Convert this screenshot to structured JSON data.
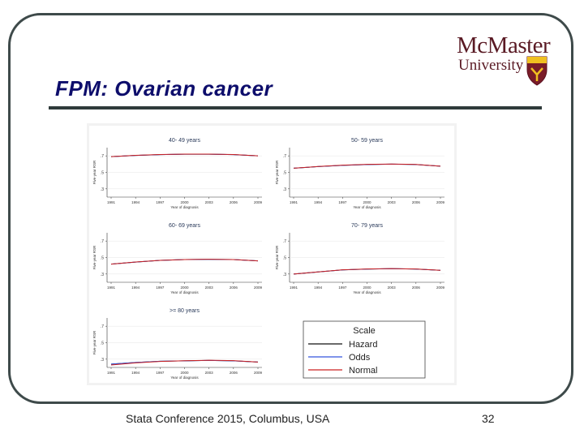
{
  "slide": {
    "title": "FPM: Ovarian cancer",
    "footer": "Stata Conference 2015, Columbus, USA",
    "page_number": "32",
    "logo": {
      "name": "McMaster",
      "sub": "University"
    }
  },
  "colors": {
    "title": "#0d0d6b",
    "hazard": "#111111",
    "odds": "#3355dd",
    "normal": "#cc2020"
  },
  "legend": {
    "title": "Scale",
    "items": [
      "Hazard",
      "Odds",
      "Normal"
    ]
  },
  "chart_data": [
    {
      "type": "line",
      "title": "40- 49 years",
      "ylabel": "Five-year RSR",
      "xlabel": "Year of diagnosis",
      "x": [
        1991,
        1994,
        1997,
        2000,
        2003,
        2006,
        2009
      ],
      "xticks": [
        "1991",
        "1994",
        "1997",
        "2000",
        "2003",
        "2006",
        "2009"
      ],
      "yticks": [
        ".7",
        ".5",
        ".3"
      ],
      "ylim": [
        0.2,
        0.8
      ],
      "series": [
        {
          "name": "Hazard",
          "values": [
            0.69,
            0.705,
            0.715,
            0.72,
            0.72,
            0.715,
            0.7
          ]
        },
        {
          "name": "Odds",
          "values": [
            0.69,
            0.705,
            0.715,
            0.72,
            0.72,
            0.715,
            0.7
          ]
        },
        {
          "name": "Normal",
          "values": [
            0.69,
            0.706,
            0.717,
            0.721,
            0.721,
            0.716,
            0.7
          ]
        }
      ]
    },
    {
      "type": "line",
      "title": "50- 59 years",
      "ylabel": "Five-year RSR",
      "xlabel": "Year of diagnosis",
      "x": [
        1991,
        1994,
        1997,
        2000,
        2003,
        2006,
        2009
      ],
      "xticks": [
        "1991",
        "1994",
        "1997",
        "2000",
        "2003",
        "2006",
        "2009"
      ],
      "yticks": [
        ".7",
        ".5",
        ".3"
      ],
      "ylim": [
        0.2,
        0.8
      ],
      "series": [
        {
          "name": "Hazard",
          "values": [
            0.55,
            0.57,
            0.585,
            0.595,
            0.6,
            0.595,
            0.575
          ]
        },
        {
          "name": "Odds",
          "values": [
            0.55,
            0.57,
            0.585,
            0.595,
            0.6,
            0.595,
            0.575
          ]
        },
        {
          "name": "Normal",
          "values": [
            0.55,
            0.571,
            0.587,
            0.597,
            0.601,
            0.596,
            0.575
          ]
        }
      ]
    },
    {
      "type": "line",
      "title": "60- 69 years",
      "ylabel": "Five-year RSR",
      "xlabel": "Year of diagnosis",
      "x": [
        1991,
        1994,
        1997,
        2000,
        2003,
        2006,
        2009
      ],
      "xticks": [
        "1991",
        "1994",
        "1997",
        "2000",
        "2003",
        "2006",
        "2009"
      ],
      "yticks": [
        ".7",
        ".5",
        ".3"
      ],
      "ylim": [
        0.2,
        0.8
      ],
      "series": [
        {
          "name": "Hazard",
          "values": [
            0.42,
            0.445,
            0.465,
            0.475,
            0.478,
            0.475,
            0.46
          ]
        },
        {
          "name": "Odds",
          "values": [
            0.42,
            0.445,
            0.465,
            0.475,
            0.478,
            0.475,
            0.46
          ]
        },
        {
          "name": "Normal",
          "values": [
            0.42,
            0.446,
            0.466,
            0.476,
            0.479,
            0.476,
            0.46
          ]
        }
      ]
    },
    {
      "type": "line",
      "title": "70- 79 years",
      "ylabel": "Five-year RSR",
      "xlabel": "Year of diagnosis",
      "x": [
        1991,
        1994,
        1997,
        2000,
        2003,
        2006,
        2009
      ],
      "xticks": [
        "1991",
        "1994",
        "1997",
        "2000",
        "2003",
        "2006",
        "2009"
      ],
      "yticks": [
        ".7",
        ".5",
        ".3"
      ],
      "ylim": [
        0.2,
        0.8
      ],
      "series": [
        {
          "name": "Hazard",
          "values": [
            0.3,
            0.325,
            0.35,
            0.36,
            0.365,
            0.36,
            0.345
          ]
        },
        {
          "name": "Odds",
          "values": [
            0.3,
            0.325,
            0.35,
            0.36,
            0.365,
            0.36,
            0.345
          ]
        },
        {
          "name": "Normal",
          "values": [
            0.3,
            0.326,
            0.351,
            0.361,
            0.366,
            0.361,
            0.345
          ]
        }
      ]
    },
    {
      "type": "line",
      "title": ">= 80 years",
      "ylabel": "Five-year RSR",
      "xlabel": "Year of diagnosis",
      "x": [
        1991,
        1994,
        1997,
        2000,
        2003,
        2006,
        2009
      ],
      "xticks": [
        "1991",
        "1994",
        "1997",
        "2000",
        "2003",
        "2006",
        "2009"
      ],
      "yticks": [
        ".7",
        ".5",
        ".3"
      ],
      "ylim": [
        0.2,
        0.8
      ],
      "series": [
        {
          "name": "Hazard",
          "values": [
            0.24,
            0.26,
            0.275,
            0.28,
            0.285,
            0.28,
            0.265
          ]
        },
        {
          "name": "Odds",
          "values": [
            0.24,
            0.26,
            0.275,
            0.28,
            0.285,
            0.28,
            0.265
          ]
        },
        {
          "name": "Normal",
          "values": [
            0.23,
            0.255,
            0.272,
            0.281,
            0.287,
            0.282,
            0.265
          ]
        }
      ]
    }
  ]
}
